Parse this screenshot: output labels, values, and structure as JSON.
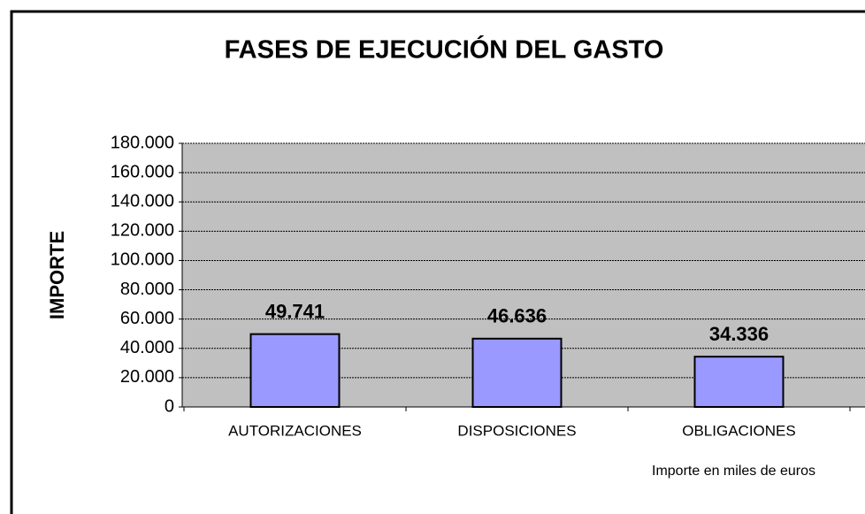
{
  "chart_data": {
    "type": "bar",
    "title": "FASES DE EJECUCIÓN DEL GASTO",
    "y_label": "IMPORTE",
    "note": "Importe en miles de euros",
    "categories": [
      "AUTORIZACIONES",
      "DISPOSICIONES",
      "OBLIGACIONES"
    ],
    "values": [
      49741,
      46636,
      34336
    ],
    "value_labels": [
      "49.741",
      "46.636",
      "34.336"
    ],
    "color": "#9999ff",
    "ylim": [
      0,
      180000
    ],
    "yticks": [
      {
        "value": 0,
        "label": "0"
      },
      {
        "value": 20000,
        "label": "20.000"
      },
      {
        "value": 40000,
        "label": "40.000"
      },
      {
        "value": 60000,
        "label": "60.000"
      },
      {
        "value": 80000,
        "label": "80.000"
      },
      {
        "value": 100000,
        "label": "100.000"
      },
      {
        "value": 120000,
        "label": "120.000"
      },
      {
        "value": 140000,
        "label": "140.000"
      },
      {
        "value": 160000,
        "label": "160.000"
      },
      {
        "value": 180000,
        "label": "180.000"
      }
    ],
    "grid": true
  }
}
